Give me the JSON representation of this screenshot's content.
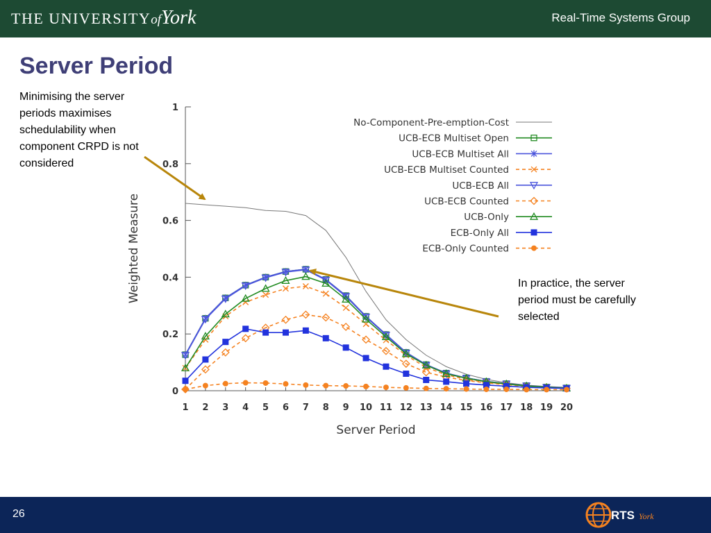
{
  "header": {
    "university": "The University",
    "university_of": "of",
    "university_york": "York",
    "group": "Real-Time Systems Group"
  },
  "slide": {
    "title": "Server Period",
    "note_left": "Minimising the server periods maximises schedulability when component CRPD is not considered",
    "note_right": "In practice, the server period must be carefully selected"
  },
  "footer": {
    "page_number": "26",
    "logo_text": "RTS",
    "logo_sub": "York"
  },
  "colors": {
    "header_bg": "#1d4a33",
    "footer_bg": "#0c2558",
    "title": "#3f3f77",
    "arrow": "#b8860b"
  },
  "chart_data": {
    "type": "line",
    "xlabel": "Server Period",
    "ylabel": "Weighted Measure",
    "x": [
      1,
      2,
      3,
      4,
      5,
      6,
      7,
      8,
      9,
      10,
      11,
      12,
      13,
      14,
      15,
      16,
      17,
      18,
      19,
      20
    ],
    "xlim": [
      1,
      20
    ],
    "ylim": [
      0,
      1
    ],
    "yticks": [
      "0",
      "0.2",
      "0.4",
      "0.6",
      "0.8",
      "1"
    ],
    "grid": false,
    "legend_position": "top-right",
    "series": [
      {
        "name": "No-Component-Pre-emption-Cost",
        "color": "#777777",
        "dash": false,
        "marker": "none",
        "values": [
          0.66,
          0.655,
          0.65,
          0.645,
          0.635,
          0.632,
          0.617,
          0.565,
          0.47,
          0.35,
          0.25,
          0.18,
          0.125,
          0.085,
          0.058,
          0.04,
          0.028,
          0.02,
          0.015,
          0.012
        ]
      },
      {
        "name": "UCB-ECB Multiset Open",
        "color": "#228b22",
        "dash": false,
        "marker": "square",
        "values": [
          0.127,
          0.255,
          0.327,
          0.372,
          0.4,
          0.42,
          0.428,
          0.392,
          0.335,
          0.262,
          0.198,
          0.135,
          0.092,
          0.062,
          0.045,
          0.033,
          0.025,
          0.018,
          0.013,
          0.01
        ]
      },
      {
        "name": "UCB-ECB Multiset All",
        "color": "#4b55dc",
        "dash": false,
        "marker": "asterisk",
        "values": [
          0.127,
          0.255,
          0.327,
          0.372,
          0.4,
          0.42,
          0.428,
          0.392,
          0.335,
          0.262,
          0.198,
          0.135,
          0.092,
          0.062,
          0.045,
          0.033,
          0.025,
          0.018,
          0.013,
          0.01
        ]
      },
      {
        "name": "UCB-ECB Multiset Counted",
        "color": "#f58220",
        "dash": true,
        "marker": "cross",
        "values": [
          0.08,
          0.18,
          0.262,
          0.312,
          0.338,
          0.36,
          0.368,
          0.342,
          0.292,
          0.235,
          0.178,
          0.125,
          0.082,
          0.056,
          0.04,
          0.03,
          0.023,
          0.017,
          0.012,
          0.009
        ]
      },
      {
        "name": "UCB-ECB All",
        "color": "#4b55dc",
        "dash": false,
        "marker": "triangle-down",
        "values": [
          0.125,
          0.252,
          0.324,
          0.37,
          0.398,
          0.418,
          0.426,
          0.39,
          0.332,
          0.26,
          0.196,
          0.133,
          0.09,
          0.06,
          0.044,
          0.032,
          0.024,
          0.017,
          0.012,
          0.009
        ]
      },
      {
        "name": "UCB-ECB Counted",
        "color": "#f58220",
        "dash": true,
        "marker": "diamond",
        "values": [
          0.005,
          0.075,
          0.135,
          0.185,
          0.222,
          0.25,
          0.268,
          0.258,
          0.225,
          0.18,
          0.14,
          0.095,
          0.065,
          0.048,
          0.036,
          0.028,
          0.021,
          0.016,
          0.012,
          0.008
        ]
      },
      {
        "name": "UCB-Only",
        "color": "#228b22",
        "dash": false,
        "marker": "triangle-up",
        "values": [
          0.08,
          0.192,
          0.27,
          0.325,
          0.36,
          0.388,
          0.402,
          0.378,
          0.322,
          0.252,
          0.19,
          0.13,
          0.09,
          0.06,
          0.044,
          0.032,
          0.024,
          0.017,
          0.012,
          0.009
        ]
      },
      {
        "name": "ECB-Only All",
        "color": "#2233dd",
        "dash": false,
        "marker": "filled-square",
        "values": [
          0.035,
          0.11,
          0.172,
          0.218,
          0.205,
          0.205,
          0.212,
          0.185,
          0.152,
          0.115,
          0.085,
          0.06,
          0.038,
          0.032,
          0.025,
          0.02,
          0.016,
          0.012,
          0.01,
          0.008
        ]
      },
      {
        "name": "ECB-Only Counted",
        "color": "#f58220",
        "dash": true,
        "marker": "filled-circle",
        "values": [
          0.005,
          0.018,
          0.025,
          0.028,
          0.027,
          0.024,
          0.02,
          0.018,
          0.017,
          0.015,
          0.012,
          0.01,
          0.008,
          0.007,
          0.006,
          0.005,
          0.005,
          0.004,
          0.004,
          0.004
        ]
      }
    ]
  }
}
